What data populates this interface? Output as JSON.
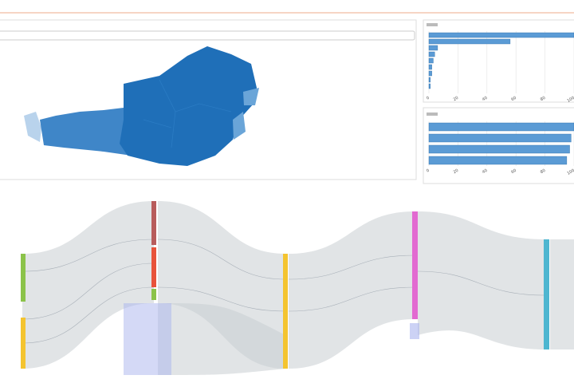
{
  "chart_data": [
    {
      "type": "bar",
      "values": [
        100,
        56,
        6,
        4,
        3,
        2,
        2,
        1,
        1
      ],
      "color": "#5b9bd5",
      "xlim": [
        0,
        100
      ],
      "xticks": [
        0,
        20,
        40,
        60,
        80,
        100
      ],
      "grid": true
    },
    {
      "type": "bar",
      "values": [
        100,
        98,
        97,
        95
      ],
      "color": "#5b9bd5",
      "xlim": [
        0,
        100
      ],
      "xticks": [
        0,
        20,
        40,
        60,
        80,
        100
      ],
      "grid": true
    }
  ]
}
